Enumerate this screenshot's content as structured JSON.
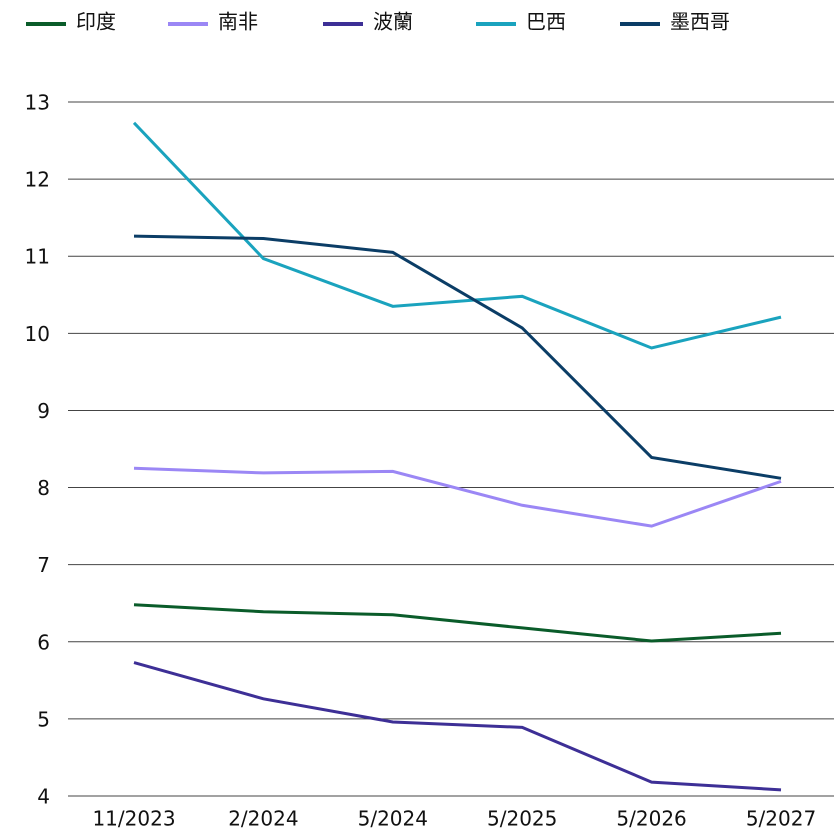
{
  "chart_data": {
    "type": "line",
    "categories": [
      "11/2023",
      "2/2024",
      "5/2024",
      "5/2025",
      "5/2026",
      "5/2027"
    ],
    "series": [
      {
        "name": "印度",
        "color": "#0a5c2a",
        "values": [
          6.48,
          6.39,
          6.35,
          6.18,
          6.01,
          6.11
        ]
      },
      {
        "name": "南非",
        "color": "#9b87f5",
        "values": [
          8.25,
          8.19,
          8.21,
          7.77,
          7.5,
          8.08
        ]
      },
      {
        "name": "波蘭",
        "color": "#3d2f96",
        "values": [
          5.73,
          5.26,
          4.96,
          4.89,
          4.18,
          4.08
        ]
      },
      {
        "name": "巴西",
        "color": "#1aa3be",
        "values": [
          12.73,
          10.97,
          10.35,
          10.48,
          9.81,
          10.21
        ]
      },
      {
        "name": "墨西哥",
        "color": "#0b3d66",
        "values": [
          11.26,
          11.23,
          11.05,
          10.07,
          8.39,
          8.12
        ]
      }
    ],
    "ylim": [
      4,
      13
    ],
    "yticks": [
      4,
      5,
      6,
      7,
      8,
      9,
      10,
      11,
      12,
      13
    ],
    "grid": true,
    "legend": "top"
  }
}
